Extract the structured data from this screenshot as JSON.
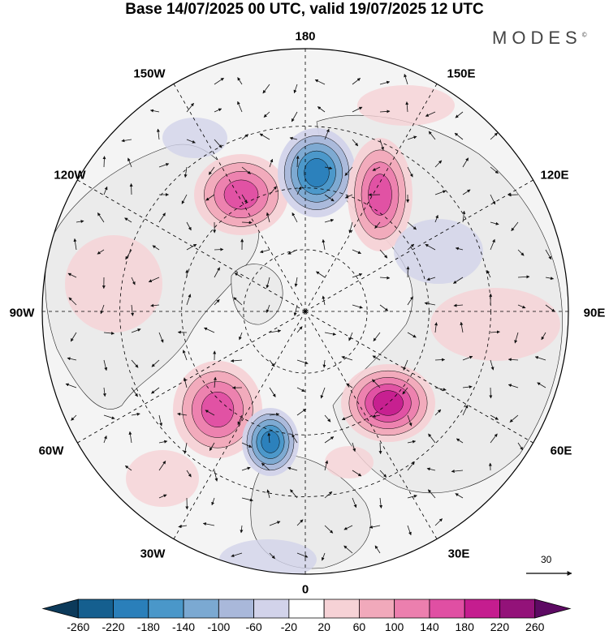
{
  "title": "Base 14/07/2025 00 UTC, valid 19/07/2025 12 UTC",
  "logo": "MODES",
  "logo_mark": "©",
  "longitude_labels": {
    "north": "180",
    "lon150w": "150W",
    "lon150e": "150E",
    "lon120w": "120W",
    "lon120e": "120E",
    "lon90w": "90W",
    "lon90e": "90E",
    "lon60w": "60W",
    "lon60e": "60E",
    "lon30w": "30W",
    "lon30e": "30E",
    "south": "0"
  },
  "vector_reference": "30",
  "colorbar": {
    "ticks": [
      "-260",
      "-220",
      "-180",
      "-140",
      "-100",
      "-60",
      "-20",
      "20",
      "60",
      "100",
      "140",
      "180",
      "220",
      "260"
    ],
    "colors": [
      "#0c3a5a",
      "#155f8f",
      "#2a7fba",
      "#4a97c9",
      "#7ba9d2",
      "#a9b8da",
      "#d2d3ea",
      "#ffffff",
      "#f6d2d6",
      "#f1a9bb",
      "#ec7fae",
      "#e04fa3",
      "#c51d8f",
      "#931279",
      "#5d0a63"
    ]
  },
  "anomalies": [
    {
      "label": "positive-pacific",
      "value": 180
    },
    {
      "label": "negative-bering",
      "value": -200
    },
    {
      "label": "positive-siberia",
      "value": 180
    },
    {
      "label": "positive-atlantic",
      "value": 180
    },
    {
      "label": "negative-atlantic",
      "value": -220
    },
    {
      "label": "positive-europe",
      "value": 200
    }
  ],
  "colors": {
    "land_fill": "#ebebeb",
    "coast": "#222222",
    "grid": "#000000",
    "arrow": "#111111"
  }
}
